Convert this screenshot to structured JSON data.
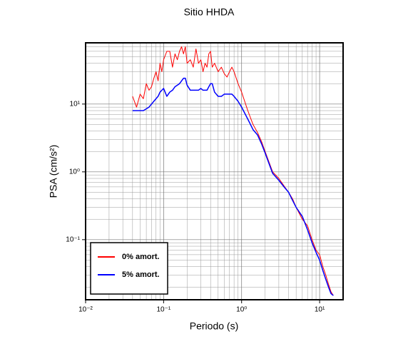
{
  "chart_data": {
    "type": "line",
    "title": "Sitio HHDA",
    "xlabel": "Periodo (s)",
    "ylabel": "PSA (cm/s²)",
    "xscale": "log",
    "yscale": "log",
    "grid": true,
    "minor_grid": true,
    "legend_position": "lower left",
    "xlim": [
      0.01,
      20
    ],
    "ylim": [
      0.013,
      80
    ],
    "xticks": [
      {
        "value": 0.01,
        "label": "10⁻²"
      },
      {
        "value": 0.1,
        "label": "10⁻¹"
      },
      {
        "value": 1,
        "label": "10⁰"
      },
      {
        "value": 10,
        "label": "10¹"
      }
    ],
    "yticks": [
      {
        "value": 0.1,
        "label": "10⁻¹"
      },
      {
        "value": 1,
        "label": "10⁰"
      },
      {
        "value": 10,
        "label": "10¹"
      }
    ],
    "x": [
      0.04,
      0.045,
      0.05,
      0.055,
      0.06,
      0.065,
      0.07,
      0.075,
      0.08,
      0.085,
      0.09,
      0.095,
      0.1,
      0.11,
      0.12,
      0.13,
      0.14,
      0.15,
      0.16,
      0.17,
      0.18,
      0.19,
      0.2,
      0.22,
      0.24,
      0.26,
      0.28,
      0.3,
      0.32,
      0.34,
      0.36,
      0.38,
      0.4,
      0.42,
      0.45,
      0.5,
      0.55,
      0.6,
      0.65,
      0.7,
      0.75,
      0.8,
      0.9,
      1.0,
      1.2,
      1.4,
      1.6,
      1.8,
      2.0,
      2.5,
      3,
      3.5,
      4,
      4.5,
      5,
      6,
      7,
      8,
      9,
      10,
      11,
      12,
      13,
      14,
      15
    ],
    "series": [
      {
        "name": "0% amort.",
        "color": "#ff0000",
        "width": 1,
        "values": [
          13,
          9,
          14,
          12,
          20,
          16,
          18,
          24,
          30,
          22,
          40,
          30,
          45,
          60,
          60,
          35,
          55,
          45,
          60,
          70,
          55,
          70,
          40,
          45,
          35,
          65,
          40,
          45,
          30,
          40,
          35,
          55,
          60,
          35,
          40,
          30,
          35,
          28,
          25,
          30,
          35,
          30,
          20,
          15,
          8,
          5,
          3.8,
          2.8,
          2.0,
          1.0,
          0.8,
          0.62,
          0.5,
          0.4,
          0.3,
          0.2,
          0.16,
          0.1,
          0.07,
          0.06,
          0.04,
          0.03,
          0.022,
          0.017,
          0.015
        ]
      },
      {
        "name": "5% amort.",
        "color": "#0000ff",
        "width": 1.5,
        "values": [
          8,
          8,
          8,
          8,
          8.5,
          9,
          10,
          11,
          12,
          13,
          15,
          16,
          17,
          13,
          15,
          16,
          18,
          19,
          20,
          22,
          24,
          24,
          19,
          16,
          16,
          16,
          16,
          17,
          16,
          16,
          16,
          18,
          20,
          20,
          15,
          13,
          13,
          14,
          14,
          14,
          14,
          13,
          11,
          9,
          6,
          4.2,
          3.5,
          2.6,
          1.9,
          0.95,
          0.75,
          0.6,
          0.5,
          0.38,
          0.3,
          0.22,
          0.14,
          0.09,
          0.065,
          0.05,
          0.035,
          0.026,
          0.02,
          0.016,
          0.015
        ]
      }
    ]
  }
}
